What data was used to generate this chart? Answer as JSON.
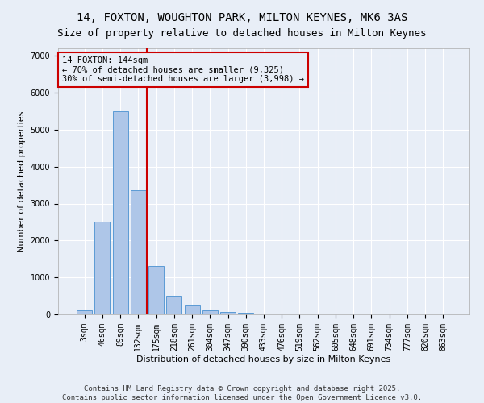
{
  "title_line1": "14, FOXTON, WOUGHTON PARK, MILTON KEYNES, MK6 3AS",
  "title_line2": "Size of property relative to detached houses in Milton Keynes",
  "xlabel": "Distribution of detached houses by size in Milton Keynes",
  "ylabel": "Number of detached properties",
  "categories": [
    "3sqm",
    "46sqm",
    "89sqm",
    "132sqm",
    "175sqm",
    "218sqm",
    "261sqm",
    "304sqm",
    "347sqm",
    "390sqm",
    "433sqm",
    "476sqm",
    "519sqm",
    "562sqm",
    "605sqm",
    "648sqm",
    "691sqm",
    "734sqm",
    "777sqm",
    "820sqm",
    "863sqm"
  ],
  "values": [
    100,
    2500,
    5500,
    3350,
    1300,
    500,
    230,
    110,
    70,
    50,
    0,
    0,
    0,
    0,
    0,
    0,
    0,
    0,
    0,
    0,
    0
  ],
  "bar_color": "#aec6e8",
  "bar_edge_color": "#5b9bd5",
  "vline_color": "#cc0000",
  "annotation_text_line1": "14 FOXTON: 144sqm",
  "annotation_text_line2": "← 70% of detached houses are smaller (9,325)",
  "annotation_text_line3": "30% of semi-detached houses are larger (3,998) →",
  "box_edge_color": "#cc0000",
  "ylim": [
    0,
    7200
  ],
  "yticks": [
    0,
    1000,
    2000,
    3000,
    4000,
    5000,
    6000,
    7000
  ],
  "footer_line1": "Contains HM Land Registry data © Crown copyright and database right 2025.",
  "footer_line2": "Contains public sector information licensed under the Open Government Licence v3.0.",
  "bg_color": "#e8eef7",
  "grid_color": "#ffffff",
  "title_fontsize": 10,
  "subtitle_fontsize": 9,
  "axis_label_fontsize": 8,
  "tick_fontsize": 7,
  "annotation_fontsize": 7.5,
  "footer_fontsize": 6.5
}
